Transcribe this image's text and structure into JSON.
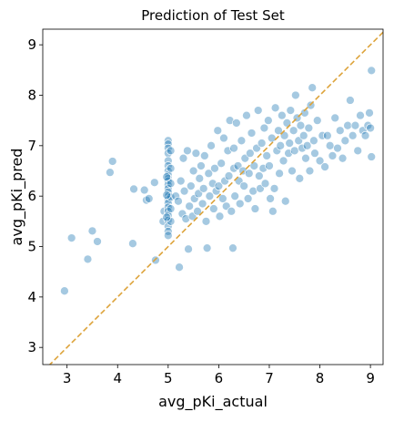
{
  "chart_data": {
    "type": "scatter",
    "title": "Prediction of Test Set",
    "x_label": "avg_pKi_actual",
    "y_label": "avg_pKi_pred",
    "color": "#1f77b4",
    "reference_line_color": "#dda33a",
    "xlim": [
      2.52,
      9.25
    ],
    "ylim": [
      2.66,
      9.31
    ],
    "xticks": [
      3,
      4,
      5,
      6,
      7,
      8,
      9
    ],
    "yticks": [
      3,
      4,
      5,
      6,
      7,
      8,
      9
    ],
    "x": [
      2.95,
      3.09,
      3.41,
      3.5,
      3.6,
      3.85,
      3.9,
      4.3,
      4.32,
      4.53,
      4.57,
      4.62,
      4.73,
      4.75,
      4.9,
      4.92,
      5.0,
      5.0,
      5.0,
      5.0,
      5.0,
      5.0,
      5.0,
      5.0,
      5.0,
      5.0,
      5.0,
      5.0,
      5.0,
      5.0,
      5.0,
      5.0,
      5.0,
      5.0,
      5.0,
      5.0,
      5.0,
      5.0,
      5.0,
      5.05,
      5.05,
      5.05,
      5.05,
      5.05,
      5.05,
      4.97,
      4.97,
      4.97,
      5.15,
      5.2,
      5.22,
      5.25,
      5.28,
      5.3,
      5.32,
      5.35,
      5.38,
      5.4,
      5.42,
      5.45,
      5.48,
      5.5,
      5.52,
      5.55,
      5.58,
      5.6,
      5.62,
      5.65,
      5.68,
      5.7,
      5.72,
      5.75,
      5.77,
      5.8,
      5.82,
      5.85,
      5.88,
      5.9,
      5.92,
      5.95,
      5.98,
      6.0,
      6.02,
      6.05,
      6.08,
      6.1,
      6.12,
      6.15,
      6.18,
      6.2,
      6.22,
      6.25,
      6.28,
      6.3,
      6.3,
      6.32,
      6.35,
      6.38,
      6.4,
      6.42,
      6.45,
      6.48,
      6.5,
      6.52,
      6.55,
      6.58,
      6.6,
      6.62,
      6.65,
      6.68,
      6.7,
      6.72,
      6.75,
      6.78,
      6.8,
      6.82,
      6.85,
      6.88,
      6.9,
      6.92,
      6.95,
      6.98,
      7.0,
      7.02,
      7.05,
      7.07,
      7.1,
      7.12,
      7.15,
      7.18,
      7.2,
      7.22,
      7.25,
      7.28,
      7.3,
      7.32,
      7.35,
      7.38,
      7.4,
      7.42,
      7.45,
      7.48,
      7.5,
      7.52,
      7.55,
      7.58,
      7.6,
      7.62,
      7.65,
      7.68,
      7.7,
      7.72,
      7.75,
      7.78,
      7.8,
      7.82,
      7.85,
      7.88,
      7.9,
      7.95,
      8.0,
      8.05,
      8.1,
      8.15,
      8.2,
      8.25,
      8.3,
      8.35,
      8.4,
      8.45,
      8.5,
      8.55,
      8.6,
      8.65,
      8.7,
      8.75,
      8.8,
      8.85,
      8.9,
      8.95,
      8.98,
      9.02,
      9.02,
      9.0
    ],
    "values": [
      4.12,
      5.17,
      4.75,
      5.31,
      5.1,
      6.47,
      6.69,
      5.06,
      6.14,
      6.12,
      5.92,
      5.95,
      6.27,
      4.73,
      5.5,
      5.7,
      7.1,
      7.03,
      6.95,
      6.85,
      6.7,
      6.6,
      6.5,
      6.42,
      6.35,
      6.3,
      6.22,
      6.15,
      6.08,
      6.0,
      5.93,
      5.86,
      5.78,
      5.7,
      5.62,
      5.52,
      5.4,
      5.3,
      5.22,
      6.9,
      6.55,
      6.25,
      5.98,
      5.75,
      5.5,
      6.38,
      6.02,
      5.58,
      6.0,
      5.9,
      4.59,
      6.3,
      5.65,
      6.75,
      6.1,
      5.55,
      6.9,
      4.95,
      5.8,
      6.2,
      5.6,
      6.5,
      5.95,
      6.85,
      5.7,
      6.05,
      6.35,
      6.6,
      5.85,
      6.15,
      6.8,
      5.5,
      4.97,
      6.45,
      6.0,
      7.0,
      6.25,
      5.75,
      6.55,
      6.1,
      7.3,
      6.2,
      5.6,
      6.65,
      5.95,
      7.15,
      6.3,
      5.8,
      6.9,
      6.4,
      7.5,
      5.7,
      4.97,
      6.95,
      6.55,
      6.0,
      7.45,
      6.6,
      6.3,
      5.85,
      7.1,
      6.5,
      6.2,
      6.75,
      7.6,
      5.95,
      6.45,
      6.85,
      7.25,
      6.1,
      6.6,
      5.75,
      6.95,
      7.7,
      6.4,
      6.15,
      7.05,
      6.55,
      7.35,
      6.25,
      6.8,
      7.5,
      6.6,
      5.95,
      7.15,
      5.7,
      6.15,
      7.75,
      6.9,
      7.3,
      6.45,
      7.0,
      7.6,
      6.7,
      7.2,
      5.9,
      7.45,
      6.85,
      7.05,
      7.7,
      6.5,
      7.3,
      6.9,
      8.0,
      7.55,
      7.1,
      6.35,
      7.4,
      6.95,
      7.2,
      7.65,
      6.75,
      7.0,
      7.35,
      6.5,
      7.8,
      8.15,
      7.1,
      6.85,
      7.5,
      6.7,
      7.2,
      6.58,
      7.2,
      7.0,
      6.8,
      7.55,
      6.95,
      7.3,
      6.75,
      7.1,
      7.4,
      7.9,
      7.2,
      7.4,
      6.9,
      7.6,
      7.3,
      7.2,
      7.4,
      7.65,
      8.49,
      6.78,
      7.35
    ]
  }
}
